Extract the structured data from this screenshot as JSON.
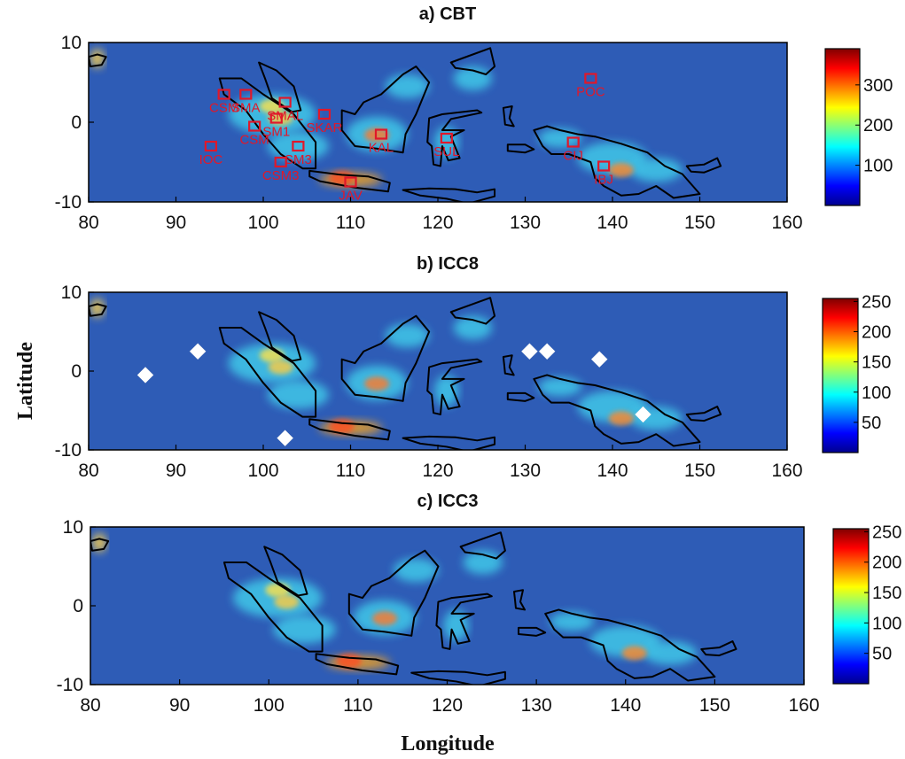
{
  "chart_data": [
    {
      "type": "heatmap",
      "title": "a) CBT",
      "xlim": [
        80,
        160
      ],
      "ylim": [
        -10,
        10
      ],
      "x_ticks": [
        "80",
        "90",
        "100",
        "110",
        "120",
        "130",
        "140",
        "150",
        "160"
      ],
      "y_ticks": [
        "10",
        "0",
        "-10"
      ],
      "colorbar": {
        "range": [
          0,
          390
        ],
        "ticks": [
          "300",
          "200",
          "100"
        ],
        "tick_values": [
          300,
          200,
          100
        ]
      },
      "sites": [
        {
          "label": "SMAL",
          "lon": 102.5,
          "lat": 2.5
        },
        {
          "label": "SKAR",
          "lon": 107.0,
          "lat": 1.0
        },
        {
          "label": "CSM",
          "lon": 95.5,
          "lat": 3.5
        },
        {
          "label": "SMA",
          "lon": 98.0,
          "lat": 3.5
        },
        {
          "label": "SM1",
          "lon": 101.5,
          "lat": 0.5
        },
        {
          "label": "CSM",
          "lon": 99.0,
          "lat": -0.5
        },
        {
          "label": "SM3",
          "lon": 104.0,
          "lat": -3.0
        },
        {
          "label": "IOC",
          "lon": 94.0,
          "lat": -3.0
        },
        {
          "label": "CSM3",
          "lon": 102.0,
          "lat": -5.0
        },
        {
          "label": "JAV",
          "lon": 110.0,
          "lat": -7.5
        },
        {
          "label": "KAL",
          "lon": 113.5,
          "lat": -1.5
        },
        {
          "label": "SUL",
          "lon": 121.0,
          "lat": -2.0
        },
        {
          "label": "POC",
          "lon": 137.5,
          "lat": 5.5
        },
        {
          "label": "CIJ",
          "lon": 135.5,
          "lat": -2.5
        },
        {
          "label": "IBJ",
          "lon": 139.0,
          "lat": -5.5
        }
      ]
    },
    {
      "type": "heatmap",
      "title": "b) ICC8",
      "xlim": [
        80,
        160
      ],
      "ylim": [
        -10,
        10
      ],
      "x_ticks": [
        "80",
        "90",
        "100",
        "110",
        "120",
        "130",
        "140",
        "150",
        "160"
      ],
      "y_ticks": [
        "10",
        "0",
        "-10"
      ],
      "colorbar": {
        "range": [
          0,
          255
        ],
        "ticks": [
          "250",
          "200",
          "150",
          "100",
          "50"
        ],
        "tick_values": [
          250,
          200,
          150,
          100,
          50
        ]
      },
      "markers": [
        {
          "lon": 86.5,
          "lat": -0.5
        },
        {
          "lon": 92.5,
          "lat": 2.5
        },
        {
          "lon": 102.5,
          "lat": -8.5
        },
        {
          "lon": 130.5,
          "lat": 2.5
        },
        {
          "lon": 132.5,
          "lat": 2.5
        },
        {
          "lon": 138.5,
          "lat": 1.5
        },
        {
          "lon": 143.5,
          "lat": -5.5
        }
      ]
    },
    {
      "type": "heatmap",
      "title": "c) ICC3",
      "xlim": [
        80,
        160
      ],
      "ylim": [
        -10,
        10
      ],
      "x_ticks": [
        "80",
        "90",
        "100",
        "110",
        "120",
        "130",
        "140",
        "150",
        "160"
      ],
      "y_ticks": [
        "10",
        "0",
        "-10"
      ],
      "colorbar": {
        "range": [
          0,
          255
        ],
        "ticks": [
          "250",
          "200",
          "150",
          "100",
          "50"
        ],
        "tick_values": [
          250,
          200,
          150,
          100,
          50
        ]
      }
    }
  ],
  "axes": {
    "ylabel": "Latitude",
    "xlabel": "Longitude"
  }
}
